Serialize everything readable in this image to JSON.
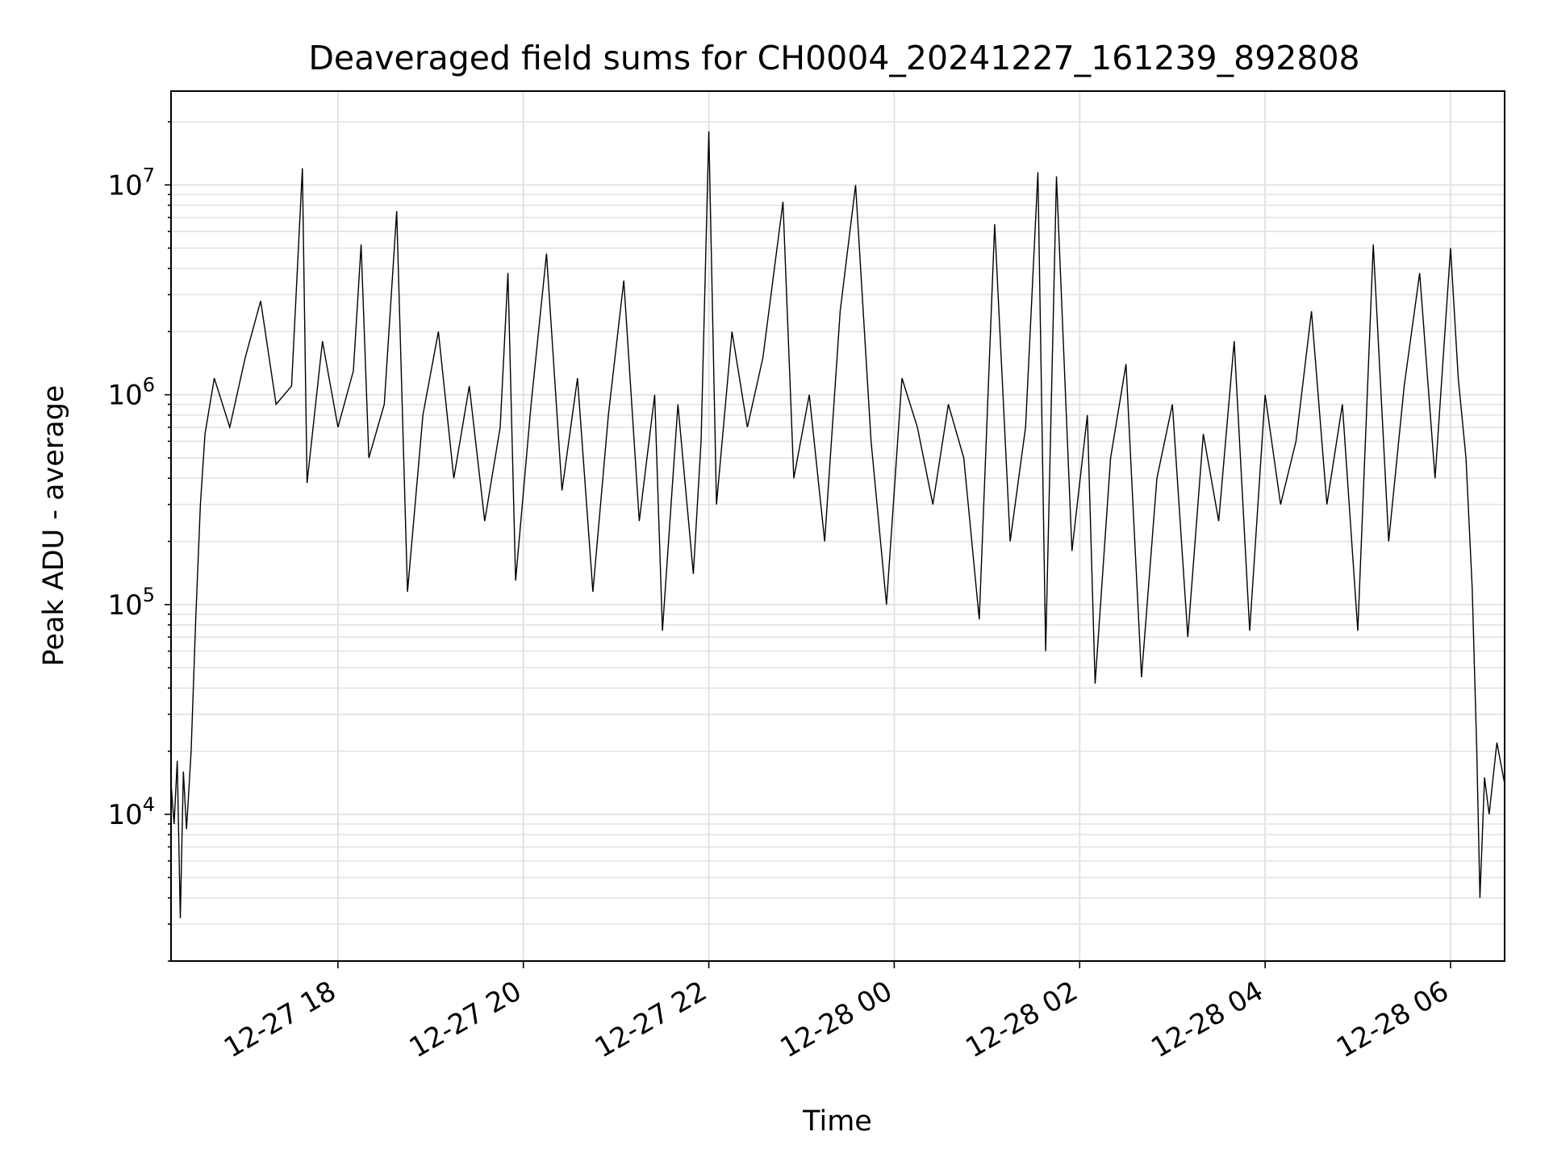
{
  "chart_data": {
    "type": "line",
    "title": "Deaveraged field sums for CH0004_20241227_161239_892808",
    "xlabel": "Time",
    "ylabel": "Peak ADU - average",
    "yscale": "log",
    "ylim": [
      2000,
      28000000
    ],
    "xlim": [
      "2024-12-27 16:12",
      "2024-12-28 06:35"
    ],
    "grid": true,
    "line_color": "#000000",
    "x_ticks": [
      {
        "t": "2024-12-27 18:00",
        "label": "12-27 18"
      },
      {
        "t": "2024-12-27 20:00",
        "label": "12-27 20"
      },
      {
        "t": "2024-12-27 22:00",
        "label": "12-27 22"
      },
      {
        "t": "2024-12-28 00:00",
        "label": "12-28 00"
      },
      {
        "t": "2024-12-28 02:00",
        "label": "12-28 02"
      },
      {
        "t": "2024-12-28 04:00",
        "label": "12-28 04"
      },
      {
        "t": "2024-12-28 06:00",
        "label": "12-28 06"
      }
    ],
    "y_ticks": [
      {
        "value": 10000,
        "base": "10",
        "exp": "4"
      },
      {
        "value": 100000,
        "base": "10",
        "exp": "5"
      },
      {
        "value": 1000000,
        "base": "10",
        "exp": "6"
      },
      {
        "value": 10000000,
        "base": "10",
        "exp": "7"
      }
    ],
    "series": [
      {
        "points": [
          [
            "2024-12-27 16:12",
            14000
          ],
          [
            "2024-12-27 16:14",
            9000
          ],
          [
            "2024-12-27 16:16",
            18000
          ],
          [
            "2024-12-27 16:18",
            3200
          ],
          [
            "2024-12-27 16:20",
            16000
          ],
          [
            "2024-12-27 16:22",
            8500
          ],
          [
            "2024-12-27 16:25",
            20000
          ],
          [
            "2024-12-27 16:28",
            85000
          ],
          [
            "2024-12-27 16:31",
            300000
          ],
          [
            "2024-12-27 16:34",
            650000
          ],
          [
            "2024-12-27 16:40",
            1200000
          ],
          [
            "2024-12-27 16:50",
            700000
          ],
          [
            "2024-12-27 17:00",
            1500000
          ],
          [
            "2024-12-27 17:10",
            2800000
          ],
          [
            "2024-12-27 17:20",
            900000
          ],
          [
            "2024-12-27 17:30",
            1100000
          ],
          [
            "2024-12-27 17:37",
            12000000
          ],
          [
            "2024-12-27 17:40",
            380000
          ],
          [
            "2024-12-27 17:50",
            1800000
          ],
          [
            "2024-12-27 18:00",
            700000
          ],
          [
            "2024-12-27 18:10",
            1300000
          ],
          [
            "2024-12-27 18:15",
            5200000
          ],
          [
            "2024-12-27 18:20",
            500000
          ],
          [
            "2024-12-27 18:30",
            900000
          ],
          [
            "2024-12-27 18:38",
            7500000
          ],
          [
            "2024-12-27 18:45",
            115000
          ],
          [
            "2024-12-27 18:55",
            800000
          ],
          [
            "2024-12-27 19:05",
            2000000
          ],
          [
            "2024-12-27 19:15",
            400000
          ],
          [
            "2024-12-27 19:25",
            1100000
          ],
          [
            "2024-12-27 19:35",
            250000
          ],
          [
            "2024-12-27 19:45",
            700000
          ],
          [
            "2024-12-27 19:50",
            3800000
          ],
          [
            "2024-12-27 19:55",
            130000
          ],
          [
            "2024-12-27 20:05",
            900000
          ],
          [
            "2024-12-27 20:15",
            4700000
          ],
          [
            "2024-12-27 20:25",
            350000
          ],
          [
            "2024-12-27 20:35",
            1200000
          ],
          [
            "2024-12-27 20:45",
            115000
          ],
          [
            "2024-12-27 20:55",
            800000
          ],
          [
            "2024-12-27 21:05",
            3500000
          ],
          [
            "2024-12-27 21:15",
            250000
          ],
          [
            "2024-12-27 21:25",
            1000000
          ],
          [
            "2024-12-27 21:30",
            75000
          ],
          [
            "2024-12-27 21:40",
            900000
          ],
          [
            "2024-12-27 21:50",
            140000
          ],
          [
            "2024-12-27 21:55",
            600000
          ],
          [
            "2024-12-27 22:00",
            18000000
          ],
          [
            "2024-12-27 22:05",
            300000
          ],
          [
            "2024-12-27 22:15",
            2000000
          ],
          [
            "2024-12-27 22:25",
            700000
          ],
          [
            "2024-12-27 22:35",
            1500000
          ],
          [
            "2024-12-27 22:48",
            8300000
          ],
          [
            "2024-12-27 22:55",
            400000
          ],
          [
            "2024-12-27 23:05",
            1000000
          ],
          [
            "2024-12-27 23:15",
            200000
          ],
          [
            "2024-12-27 23:25",
            2500000
          ],
          [
            "2024-12-27 23:35",
            10000000
          ],
          [
            "2024-12-27 23:45",
            600000
          ],
          [
            "2024-12-27 23:55",
            100000
          ],
          [
            "2024-12-28 00:05",
            1200000
          ],
          [
            "2024-12-28 00:15",
            700000
          ],
          [
            "2024-12-28 00:25",
            300000
          ],
          [
            "2024-12-28 00:35",
            900000
          ],
          [
            "2024-12-28 00:45",
            500000
          ],
          [
            "2024-12-28 00:55",
            85000
          ],
          [
            "2024-12-28 01:05",
            6500000
          ],
          [
            "2024-12-28 01:15",
            200000
          ],
          [
            "2024-12-28 01:25",
            700000
          ],
          [
            "2024-12-28 01:33",
            11500000
          ],
          [
            "2024-12-28 01:38",
            60000
          ],
          [
            "2024-12-28 01:45",
            11000000
          ],
          [
            "2024-12-28 01:55",
            180000
          ],
          [
            "2024-12-28 02:05",
            800000
          ],
          [
            "2024-12-28 02:10",
            42000
          ],
          [
            "2024-12-28 02:20",
            500000
          ],
          [
            "2024-12-28 02:30",
            1400000
          ],
          [
            "2024-12-28 02:40",
            45000
          ],
          [
            "2024-12-28 02:50",
            400000
          ],
          [
            "2024-12-28 03:00",
            900000
          ],
          [
            "2024-12-28 03:10",
            70000
          ],
          [
            "2024-12-28 03:20",
            650000
          ],
          [
            "2024-12-28 03:30",
            250000
          ],
          [
            "2024-12-28 03:40",
            1800000
          ],
          [
            "2024-12-28 03:50",
            75000
          ],
          [
            "2024-12-28 04:00",
            1000000
          ],
          [
            "2024-12-28 04:10",
            300000
          ],
          [
            "2024-12-28 04:20",
            600000
          ],
          [
            "2024-12-28 04:30",
            2500000
          ],
          [
            "2024-12-28 04:40",
            300000
          ],
          [
            "2024-12-28 04:50",
            900000
          ],
          [
            "2024-12-28 05:00",
            75000
          ],
          [
            "2024-12-28 05:10",
            5200000
          ],
          [
            "2024-12-28 05:20",
            200000
          ],
          [
            "2024-12-28 05:30",
            1100000
          ],
          [
            "2024-12-28 05:40",
            3800000
          ],
          [
            "2024-12-28 05:50",
            400000
          ],
          [
            "2024-12-28 06:00",
            5000000
          ],
          [
            "2024-12-28 06:05",
            1200000
          ],
          [
            "2024-12-28 06:10",
            500000
          ],
          [
            "2024-12-28 06:14",
            120000
          ],
          [
            "2024-12-28 06:17",
            20000
          ],
          [
            "2024-12-28 06:19",
            4000
          ],
          [
            "2024-12-28 06:22",
            15000
          ],
          [
            "2024-12-28 06:25",
            10000
          ],
          [
            "2024-12-28 06:30",
            22000
          ],
          [
            "2024-12-28 06:35",
            14000
          ]
        ]
      }
    ]
  }
}
